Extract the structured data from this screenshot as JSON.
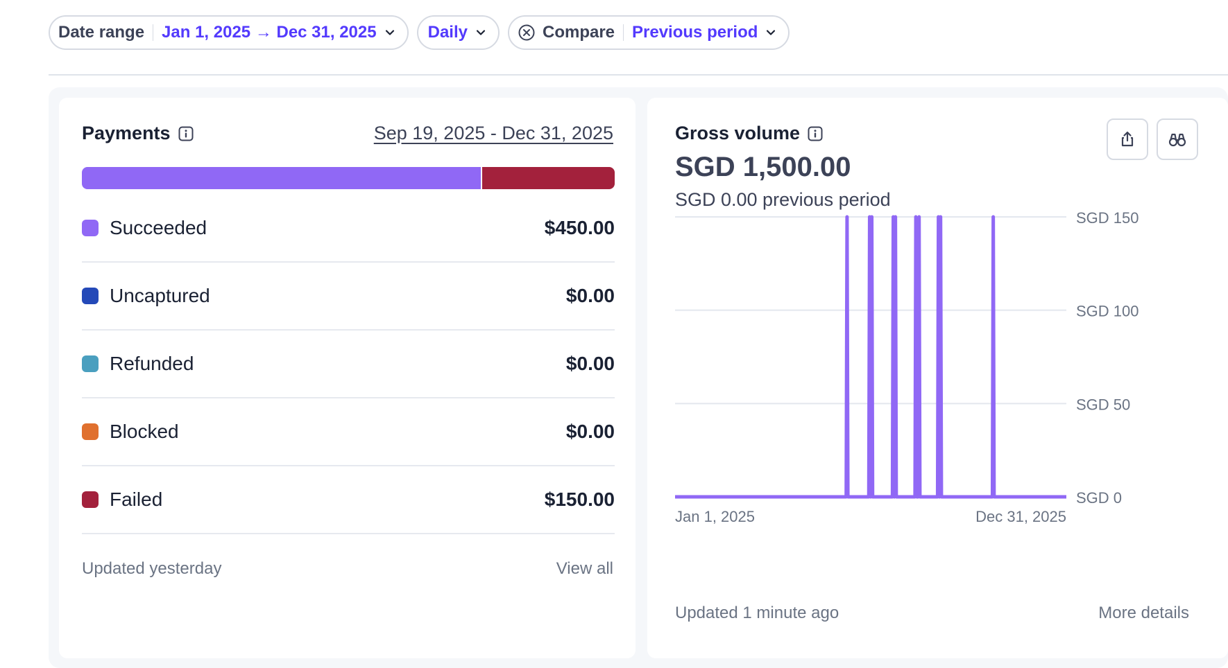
{
  "filters": {
    "date_range": {
      "label": "Date range",
      "value": "Jan 1, 2025 → Dec 31, 2025"
    },
    "interval": {
      "value": "Daily"
    },
    "compare": {
      "label": "Compare",
      "value": "Previous period"
    }
  },
  "payments": {
    "title": "Payments",
    "range": "Sep 19, 2025 - Dec 31, 2025",
    "breakdown": [
      {
        "label": "Succeeded",
        "value": "$450.00",
        "amount": 450,
        "color": "#9068f5"
      },
      {
        "label": "Uncaptured",
        "value": "$0.00",
        "amount": 0,
        "color": "#2449b8"
      },
      {
        "label": "Refunded",
        "value": "$0.00",
        "amount": 0,
        "color": "#4a9fbf"
      },
      {
        "label": "Blocked",
        "value": "$0.00",
        "amount": 0,
        "color": "#e0702e"
      },
      {
        "label": "Failed",
        "value": "$150.00",
        "amount": 150,
        "color": "#a3213c"
      }
    ],
    "updated": "Updated yesterday",
    "view_all": "View all"
  },
  "gross_volume": {
    "title": "Gross volume",
    "amount": "SGD 1,500.00",
    "previous": "SGD 0.00 previous period",
    "updated": "Updated 1 minute ago",
    "more": "More details",
    "icons": {
      "share": "share-icon",
      "explore": "binoculars-icon"
    },
    "chart_data": {
      "type": "line",
      "x_start": "Jan 1, 2025",
      "x_end": "Dec 31, 2025",
      "x_tick_labels": [
        "Jan 1, 2025",
        "Dec 31, 2025"
      ],
      "y_tick_labels": [
        "SGD 150",
        "SGD 100",
        "SGD 50",
        "SGD 0"
      ],
      "y_ticks": [
        150,
        100,
        50,
        0
      ],
      "ylim": [
        0,
        150
      ],
      "grid": true,
      "color": "#9068f5",
      "series": [
        {
          "points": [
            {
              "x": "Jun 10, 2025",
              "y": 150
            },
            {
              "x": "Jul 1, 2025",
              "y": 150
            },
            {
              "x": "Jul 3, 2025",
              "y": 150
            },
            {
              "x": "Jul 23, 2025",
              "y": 150
            },
            {
              "x": "Jul 25, 2025",
              "y": 150
            },
            {
              "x": "Aug 13, 2025",
              "y": 150
            },
            {
              "x": "Aug 16, 2025",
              "y": 150
            },
            {
              "x": "Sep 3, 2025",
              "y": 150
            },
            {
              "x": "Sep 5, 2025",
              "y": 150
            },
            {
              "x": "Oct 24, 2025",
              "y": 150
            }
          ],
          "baseline": 0
        }
      ]
    }
  }
}
